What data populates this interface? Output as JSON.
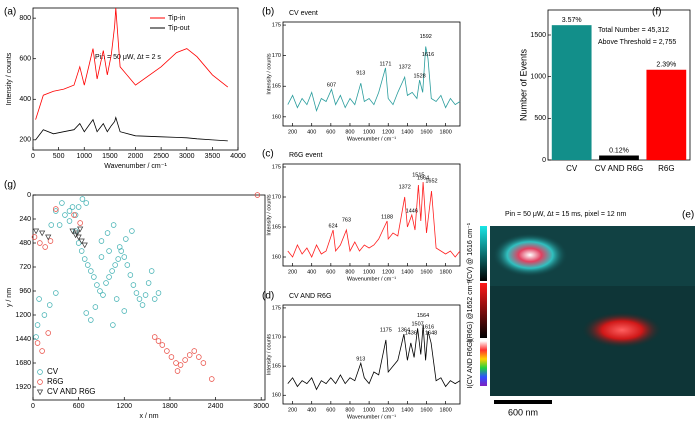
{
  "chart_data": [
    {
      "type": "line",
      "panel_label": "(a)",
      "xlabel": "Wavenumber / cm⁻¹",
      "ylabel": "Intensity / counts",
      "annotations": [
        "Pin = 50 μW, Δt = 2 s"
      ],
      "x": [
        50,
        200,
        400,
        600,
        800,
        913,
        1000,
        1171,
        1250,
        1372,
        1450,
        1528,
        1592,
        1616,
        1700,
        2000,
        2500,
        2800,
        3000,
        3200,
        3500,
        3800
      ],
      "series": [
        {
          "name": "Tip-in",
          "color": "#ff0000",
          "values": [
            300,
            420,
            440,
            450,
            470,
            560,
            470,
            650,
            500,
            640,
            520,
            620,
            760,
            850,
            560,
            470,
            560,
            630,
            650,
            610,
            520,
            460
          ]
        },
        {
          "name": "Tip-out",
          "color": "#000000",
          "values": [
            200,
            250,
            230,
            240,
            250,
            280,
            240,
            300,
            240,
            280,
            240,
            270,
            290,
            310,
            240,
            220,
            215,
            212,
            210,
            205,
            200,
            195
          ]
        }
      ],
      "xlim": [
        0,
        4000
      ],
      "xticks": [
        0,
        500,
        1000,
        1500,
        2000,
        2500,
        3000,
        3500,
        4000
      ],
      "ylim": [
        150,
        850
      ],
      "yticks": [
        200,
        400,
        600,
        800
      ],
      "legend": "top-right"
    },
    {
      "type": "line",
      "panel_label": "(b)",
      "title": "CV event",
      "xlabel": "Wavenumber / cm⁻¹",
      "ylabel": "Intensity / counts",
      "x": [
        150,
        200,
        250,
        300,
        350,
        400,
        450,
        500,
        550,
        607,
        650,
        700,
        750,
        800,
        850,
        913,
        950,
        1000,
        1050,
        1100,
        1171,
        1200,
        1250,
        1300,
        1372,
        1400,
        1450,
        1500,
        1528,
        1560,
        1592,
        1616,
        1650,
        1700,
        1750,
        1800,
        1850,
        1900,
        1950
      ],
      "series": [
        {
          "color": "#2a9d9d",
          "values": [
            162,
            163.5,
            161.5,
            163,
            162,
            164,
            161,
            163,
            162.5,
            164.5,
            162,
            163.5,
            161.5,
            163,
            162,
            165.5,
            162.5,
            163,
            162,
            164,
            168,
            163,
            162,
            164,
            166.5,
            163.5,
            164,
            163,
            166,
            164,
            171.5,
            169.5,
            163,
            162.5,
            163.5,
            161.5,
            163,
            162,
            162.5
          ]
        }
      ],
      "peak_labels": [
        607,
        913,
        1171,
        1372,
        1528,
        1592,
        1616
      ],
      "xlim": [
        100,
        1950
      ],
      "xticks": [
        200,
        400,
        600,
        800,
        1000,
        1200,
        1400,
        1600,
        1800
      ],
      "ylim": [
        158.5,
        175.5
      ],
      "yticks": [
        160,
        165,
        170,
        175
      ]
    },
    {
      "type": "line",
      "panel_label": "(c)",
      "title": "R6G event",
      "xlabel": "Wavenumber / cm⁻¹",
      "ylabel": "Intensity / counts",
      "x": [
        150,
        200,
        250,
        300,
        350,
        400,
        450,
        500,
        550,
        624,
        650,
        700,
        763,
        800,
        850,
        900,
        950,
        1000,
        1050,
        1100,
        1188,
        1200,
        1250,
        1300,
        1372,
        1400,
        1446,
        1480,
        1515,
        1540,
        1564,
        1600,
        1652,
        1700,
        1750,
        1800,
        1850,
        1900,
        1950
      ],
      "series": [
        {
          "color": "#ff2020",
          "values": [
            161,
            160,
            162,
            160.5,
            161.5,
            160,
            162,
            160.5,
            161,
            164.5,
            161,
            162,
            164.5,
            161,
            162.5,
            161,
            162,
            161.5,
            162,
            163,
            166,
            163,
            164,
            163.5,
            170,
            165,
            167,
            164.5,
            172,
            166,
            172.5,
            164,
            171,
            161.5,
            161,
            160.5,
            161,
            160,
            161
          ]
        }
      ],
      "peak_labels": [
        624,
        763,
        1188,
        1372,
        1446,
        1515,
        1564,
        1652
      ],
      "xlim": [
        100,
        1950
      ],
      "xticks": [
        200,
        400,
        600,
        800,
        1000,
        1200,
        1400,
        1600,
        1800
      ],
      "ylim": [
        158.5,
        175.5
      ],
      "yticks": [
        160,
        165,
        170,
        175
      ]
    },
    {
      "type": "line",
      "panel_label": "(d)",
      "title": "CV AND R6G",
      "xlabel": "Wavenumber / cm⁻¹",
      "ylabel": "Intensity / counts",
      "x": [
        150,
        200,
        250,
        300,
        350,
        400,
        450,
        500,
        550,
        600,
        650,
        700,
        750,
        800,
        850,
        913,
        950,
        1000,
        1050,
        1100,
        1175,
        1200,
        1250,
        1300,
        1364,
        1400,
        1436,
        1470,
        1507,
        1540,
        1564,
        1590,
        1616,
        1648,
        1700,
        1750,
        1800,
        1850,
        1900,
        1950
      ],
      "series": [
        {
          "color": "#000000",
          "values": [
            162,
            163,
            161.5,
            162.5,
            162,
            163,
            161,
            162.5,
            162,
            163,
            162,
            163.5,
            162,
            163,
            162.5,
            165.5,
            163,
            162,
            164,
            163.5,
            169.5,
            164,
            165,
            166,
            170.5,
            166,
            169,
            166.5,
            171.5,
            167,
            172,
            166,
            171,
            169,
            162.5,
            163,
            161.5,
            162.5,
            162,
            162.5
          ]
        }
      ],
      "peak_labels": [
        913,
        1175,
        1364,
        1436,
        1507,
        1564,
        1616,
        1648
      ],
      "xlim": [
        100,
        1950
      ],
      "xticks": [
        200,
        400,
        600,
        800,
        1000,
        1200,
        1400,
        1600,
        1800
      ],
      "ylim": [
        158.5,
        175.5
      ],
      "yticks": [
        160,
        165,
        170,
        175
      ]
    },
    {
      "type": "bar",
      "panel_label": "(f)",
      "ylabel": "Number of Events",
      "annotations": [
        "Total Number = 45,312",
        "Above Threshold = 2,755"
      ],
      "categories": [
        "CV",
        "CV AND R6G",
        "R6G"
      ],
      "values": [
        1618,
        54,
        1083
      ],
      "bar_labels": [
        "3.57%",
        "0.12%",
        "2.39%"
      ],
      "colors": [
        "#128f8a",
        "#000000",
        "#ff0000"
      ],
      "ylim": [
        0,
        1800
      ],
      "yticks": [
        0,
        500,
        1000,
        1500
      ]
    },
    {
      "type": "scatter",
      "panel_label": "(g)",
      "xlabel": "x / nm",
      "ylabel": "y / nm",
      "y_inverted": true,
      "legend": "bottom-left",
      "series": [
        {
          "name": "CV",
          "color": "#3aaeb0",
          "marker": "circle",
          "x": [
            80,
            150,
            220,
            300,
            350,
            420,
            480,
            520,
            560,
            600,
            640,
            680,
            720,
            760,
            800,
            840,
            880,
            920,
            960,
            1000,
            1040,
            1080,
            1120,
            1160,
            1200,
            1240,
            1280,
            1320,
            1360,
            1400,
            1440,
            1480,
            1520,
            1560,
            1600,
            1650,
            700,
            760,
            820,
            900,
            980,
            1060,
            1140,
            1220,
            1300,
            600,
            650,
            700,
            560,
            480,
            380,
            300,
            900,
            1000,
            1100,
            1200,
            40,
            60,
            240,
            1050
          ],
          "values": [
            1040,
            1200,
            1100,
            980,
            300,
            200,
            260,
            120,
            360,
            480,
            560,
            640,
            700,
            760,
            820,
            900,
            960,
            1000,
            880,
            820,
            760,
            700,
            640,
            560,
            620,
            700,
            800,
            900,
            980,
            1040,
            1100,
            1000,
            880,
            760,
            1040,
            980,
            1180,
            1250,
            1120,
            460,
            380,
            300,
            520,
            440,
            360,
            120,
            40,
            80,
            200,
            160,
            80,
            160,
            620,
            560,
            1040,
            1160,
            1420,
            1300,
            300,
            1300
          ]
        },
        {
          "name": "R6G",
          "color": "#e8453c",
          "marker": "circle",
          "x": [
            20,
            90,
            160,
            230,
            60,
            120,
            200,
            1650,
            1700,
            1760,
            1820,
            1880,
            1940,
            2000,
            2060,
            2120,
            2180,
            2240,
            1600,
            1900,
            2350,
            2950,
            540,
            620,
            300
          ],
          "values": [
            420,
            480,
            520,
            460,
            1480,
            1560,
            1380,
            1460,
            1500,
            1560,
            1620,
            1680,
            1700,
            1650,
            1600,
            1560,
            1620,
            1680,
            1420,
            1760,
            1840,
            0,
            200,
            280,
            140
          ]
        },
        {
          "name": "CV AND R6G",
          "color": "#333333",
          "marker": "triangle",
          "x": [
            40,
            120,
            200,
            520,
            560,
            600,
            640,
            680,
            580,
            620
          ],
          "values": [
            360,
            380,
            420,
            360,
            400,
            420,
            460,
            500,
            380,
            340
          ]
        }
      ],
      "xlim": [
        0,
        3050
      ],
      "xticks": [
        0,
        600,
        1200,
        1800,
        2400,
        3000
      ],
      "ylim": [
        0,
        2050
      ],
      "yticks": [
        0,
        240,
        480,
        720,
        960,
        1200,
        1440,
        1680,
        1920
      ]
    }
  ],
  "image_panel": {
    "panel_label": "(e)",
    "annotation": "Pin = 50 μW, Δt = 15 ms, pixel = 12 nm",
    "colorbar_labels": [
      "I(CV) @ 1616 cm⁻¹",
      "I(R6G) @1652 cm⁻¹",
      "I(CV AND R6G)"
    ],
    "scale_bar": "600 nm"
  }
}
